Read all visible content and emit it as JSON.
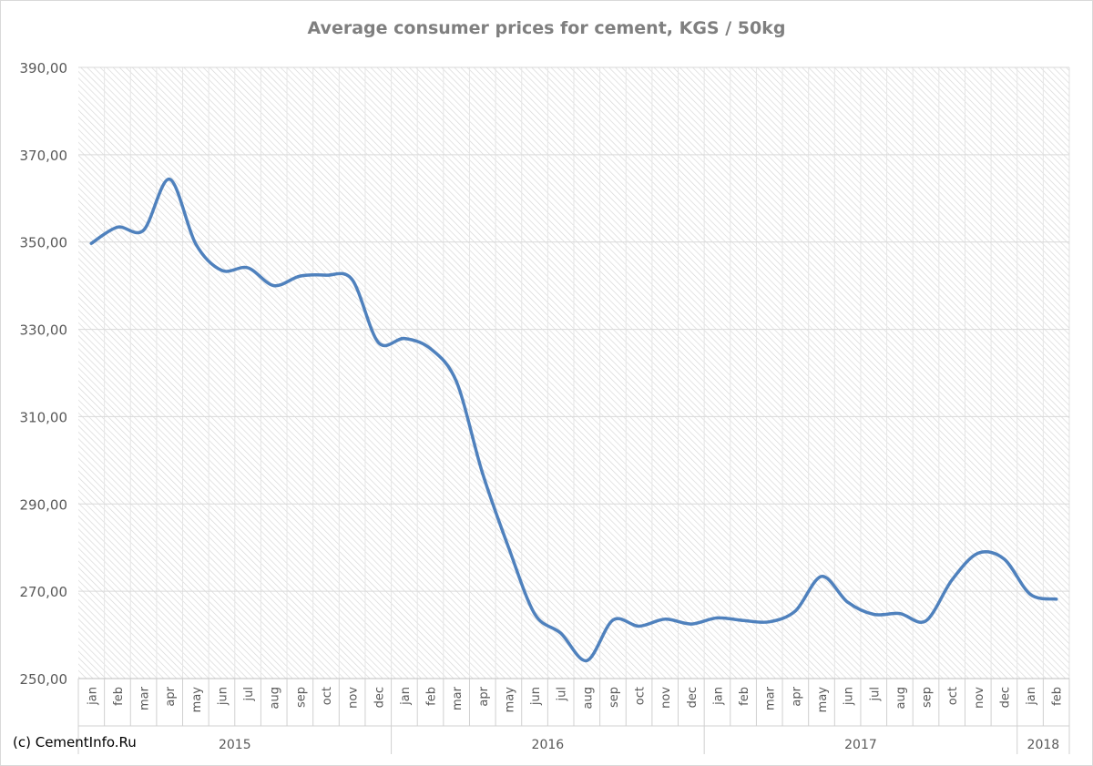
{
  "chart_data": {
    "type": "line",
    "title": "Average consumer prices for cement, KGS / 50kg",
    "ylim": [
      250,
      390
    ],
    "yticks": [
      "250,00",
      "270,00",
      "290,00",
      "310,00",
      "330,00",
      "350,00",
      "370,00",
      "390,00"
    ],
    "ytick_values": [
      250,
      270,
      290,
      310,
      330,
      350,
      370,
      390
    ],
    "grid": true,
    "legend": "none",
    "categories": [
      "jan",
      "feb",
      "mar",
      "apr",
      "may",
      "jun",
      "jul",
      "aug",
      "sep",
      "oct",
      "nov",
      "dec",
      "jan",
      "feb",
      "mar",
      "apr",
      "may",
      "jun",
      "jul",
      "aug",
      "sep",
      "oct",
      "nov",
      "dec",
      "jan",
      "feb",
      "mar",
      "apr",
      "may",
      "jun",
      "jul",
      "aug",
      "sep",
      "oct",
      "nov",
      "dec",
      "jan",
      "feb"
    ],
    "years": [
      {
        "label": "2015",
        "count": 12
      },
      {
        "label": "2016",
        "count": 12
      },
      {
        "label": "2017",
        "count": 12
      },
      {
        "label": "2018",
        "count": 2
      }
    ],
    "series": [
      {
        "color": "#4f81bd",
        "values": [
          349.7,
          353.4,
          352.7,
          364.4,
          349.6,
          343.5,
          344.1,
          340.0,
          342.2,
          342.4,
          341.4,
          327.0,
          327.9,
          325.6,
          318.0,
          297.0,
          280.0,
          264.8,
          260.4,
          254.1,
          263.4,
          262.0,
          263.6,
          262.5,
          263.9,
          263.3,
          263.0,
          265.5,
          273.4,
          267.5,
          264.7,
          264.9,
          263.2,
          272.6,
          278.7,
          277.4,
          269.3,
          268.2
        ]
      }
    ]
  },
  "footer": {
    "copyright": "(c) CementInfo.Ru"
  }
}
